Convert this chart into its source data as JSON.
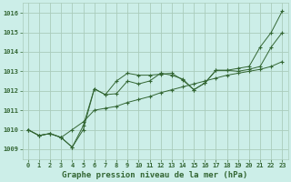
{
  "title": "Graphe pression niveau de la mer (hPa)",
  "bg_color": "#cceee8",
  "grid_color": "#aaccbb",
  "line_color": "#336633",
  "xlim": [
    -0.5,
    23.5
  ],
  "ylim": [
    1008.5,
    1016.5
  ],
  "xticks": [
    0,
    1,
    2,
    3,
    4,
    5,
    6,
    7,
    8,
    9,
    10,
    11,
    12,
    13,
    14,
    15,
    16,
    17,
    18,
    19,
    20,
    21,
    22,
    23
  ],
  "yticks": [
    1009,
    1010,
    1011,
    1012,
    1013,
    1014,
    1015,
    1016
  ],
  "line1_x": [
    0,
    1,
    2,
    3,
    4,
    5,
    6,
    7,
    8,
    9,
    10,
    11,
    12,
    13,
    14,
    15,
    16,
    17,
    18,
    19,
    20,
    21,
    22,
    23
  ],
  "line1_y": [
    1010.0,
    1009.7,
    1009.8,
    1009.6,
    1009.1,
    1010.0,
    1012.1,
    1011.8,
    1011.85,
    1012.5,
    1012.35,
    1012.5,
    1012.9,
    1012.8,
    1012.6,
    1012.05,
    1012.4,
    1013.05,
    1013.05,
    1013.0,
    1013.1,
    1013.25,
    1014.25,
    1015.0
  ],
  "line2_x": [
    0,
    1,
    2,
    3,
    4,
    5,
    6,
    7,
    8,
    9,
    10,
    11,
    12,
    13,
    14,
    15,
    16,
    17,
    18,
    19,
    20,
    21,
    22,
    23
  ],
  "line2_y": [
    1010.0,
    1009.7,
    1009.8,
    1009.6,
    1010.0,
    1010.4,
    1011.0,
    1011.1,
    1011.2,
    1011.4,
    1011.55,
    1011.7,
    1011.9,
    1012.05,
    1012.2,
    1012.35,
    1012.5,
    1012.65,
    1012.8,
    1012.9,
    1013.0,
    1013.1,
    1013.25,
    1013.5
  ],
  "line3_x": [
    0,
    1,
    2,
    3,
    4,
    5,
    6,
    7,
    8,
    9,
    10,
    11,
    12,
    13,
    14,
    15,
    16,
    17,
    18,
    19,
    20,
    21,
    22,
    23
  ],
  "line3_y": [
    1010.0,
    1009.7,
    1009.8,
    1009.6,
    1009.1,
    1010.2,
    1012.1,
    1011.8,
    1012.5,
    1012.9,
    1012.8,
    1012.8,
    1012.85,
    1012.9,
    1012.55,
    1012.05,
    1012.4,
    1013.05,
    1013.05,
    1013.15,
    1013.25,
    1014.25,
    1015.0,
    1016.1
  ],
  "title_fontsize": 6.5,
  "tick_fontsize": 5.0
}
